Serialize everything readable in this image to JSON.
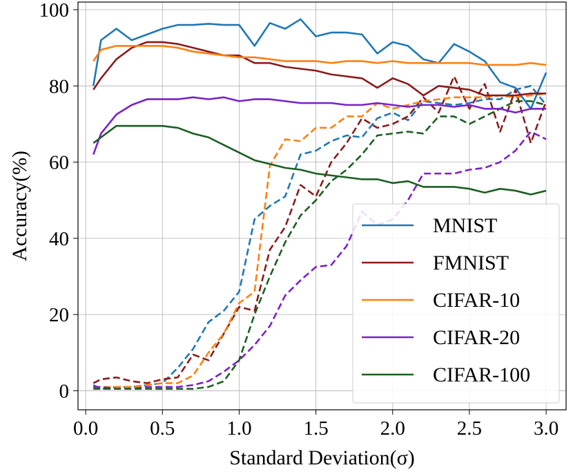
{
  "chart_data": {
    "type": "line",
    "xlabel": "Standard Deviation(σ)",
    "ylabel": "Accuracy(%)",
    "xlim": [
      -0.05,
      3.13
    ],
    "ylim": [
      -5,
      102
    ],
    "xticks": [
      0.0,
      0.5,
      1.0,
      1.5,
      2.0,
      2.5,
      3.0
    ],
    "xtick_labels": [
      "0.0",
      "0.5",
      "1.0",
      "1.5",
      "2.0",
      "2.5",
      "3.0"
    ],
    "yticks": [
      0,
      20,
      40,
      60,
      80,
      100
    ],
    "ytick_labels": [
      "0",
      "20",
      "40",
      "60",
      "80",
      "100"
    ],
    "grid": true,
    "legend_position": "bottom-right",
    "x": [
      0.05,
      0.1,
      0.2,
      0.3,
      0.4,
      0.5,
      0.6,
      0.7,
      0.8,
      0.9,
      1.0,
      1.1,
      1.2,
      1.3,
      1.4,
      1.5,
      1.6,
      1.7,
      1.8,
      1.9,
      2.0,
      2.1,
      2.2,
      2.3,
      2.4,
      2.5,
      2.6,
      2.7,
      2.8,
      2.9,
      3.0
    ],
    "series": [
      {
        "name": "MNIST",
        "color": "#1f77b4",
        "solid": [
          80,
          92,
          95,
          92,
          93.5,
          95,
          96,
          96,
          96.3,
          96,
          96,
          90.5,
          96.5,
          95,
          97.5,
          93,
          94,
          94,
          93.5,
          88.5,
          91.5,
          90.5,
          87,
          86,
          91,
          89,
          86.5,
          81,
          79.5,
          74,
          83.5
        ],
        "dashed": [
          1.5,
          0.5,
          1,
          1,
          1.5,
          2,
          6,
          11,
          18,
          21,
          26,
          45,
          48.5,
          51,
          62,
          63,
          65.5,
          67,
          66.5,
          71.5,
          73,
          71,
          76,
          75.5,
          75,
          75.5,
          76.5,
          76.5,
          79,
          80,
          75
        ]
      },
      {
        "name": "FMNIST",
        "color": "#8b1a1a",
        "solid": [
          79,
          82,
          87,
          90,
          91.5,
          91.5,
          91,
          90,
          89,
          88,
          88,
          86,
          86,
          85,
          84.5,
          84,
          83,
          82.5,
          82,
          79.5,
          82,
          80.5,
          77.5,
          80,
          79.5,
          79,
          77.5,
          77.5,
          77.5,
          78,
          78
        ],
        "dashed": [
          2,
          3,
          3.5,
          2.5,
          2,
          3,
          3.5,
          9.5,
          8,
          15,
          22,
          21,
          37,
          43,
          54,
          51,
          60,
          65,
          71.5,
          69,
          70,
          72,
          77,
          73,
          82.5,
          74,
          80.5,
          68,
          79,
          65,
          76
        ]
      },
      {
        "name": "CIFAR-10",
        "color": "#ff7f0e",
        "solid": [
          86.5,
          89.5,
          90.5,
          90.5,
          90.5,
          90.5,
          90,
          89,
          88.5,
          88,
          87.5,
          87.5,
          87,
          86.5,
          86.5,
          86.5,
          86,
          86.5,
          86.5,
          86,
          86.5,
          86,
          86,
          86,
          86,
          86,
          85.5,
          85.5,
          85.5,
          86,
          85.5
        ],
        "dashed": [
          1,
          1,
          1,
          1,
          1.5,
          2,
          2,
          4,
          10,
          15,
          23,
          26,
          59,
          66,
          65.5,
          69,
          69,
          72,
          72,
          75.5,
          74,
          75,
          76,
          76.5,
          77,
          77,
          77,
          77.5,
          77,
          77.5,
          78
        ]
      },
      {
        "name": "CIFAR-20",
        "color": "#7b1fc9",
        "solid": [
          62,
          67.5,
          72.5,
          75,
          76.5,
          76.5,
          76.5,
          77,
          76.5,
          77,
          76,
          76.5,
          76.5,
          76,
          75.5,
          75.5,
          75.5,
          75,
          75,
          75.5,
          75,
          74.5,
          75,
          75,
          74.5,
          75,
          74,
          74,
          73,
          74,
          74
        ],
        "dashed": [
          1,
          1,
          0.5,
          0.5,
          1,
          1,
          1,
          1.5,
          2.5,
          5,
          8,
          12,
          17,
          25,
          29,
          32.5,
          33,
          38,
          47,
          43.5,
          45,
          50,
          57,
          57,
          57,
          58,
          58.5,
          60,
          63,
          68,
          66
        ]
      },
      {
        "name": "CIFAR-100",
        "color": "#1b5e20",
        "solid": [
          65,
          66.5,
          69.5,
          69.5,
          69.5,
          69.5,
          69,
          67.5,
          66.5,
          64.5,
          62.5,
          60.5,
          59.5,
          58.5,
          58,
          57,
          56.5,
          56,
          55.5,
          55.5,
          54.5,
          55,
          53.5,
          53.5,
          53.5,
          53,
          52,
          53,
          52.5,
          51.5,
          52.5
        ],
        "dashed": [
          0.5,
          0.5,
          0.5,
          0.5,
          0.5,
          0.5,
          0.5,
          0.5,
          1,
          2.5,
          8,
          20,
          30,
          39,
          46,
          50,
          55,
          58,
          62,
          67,
          67.5,
          68,
          67.5,
          72,
          72,
          70,
          72,
          74,
          76,
          76,
          75
        ]
      }
    ]
  }
}
